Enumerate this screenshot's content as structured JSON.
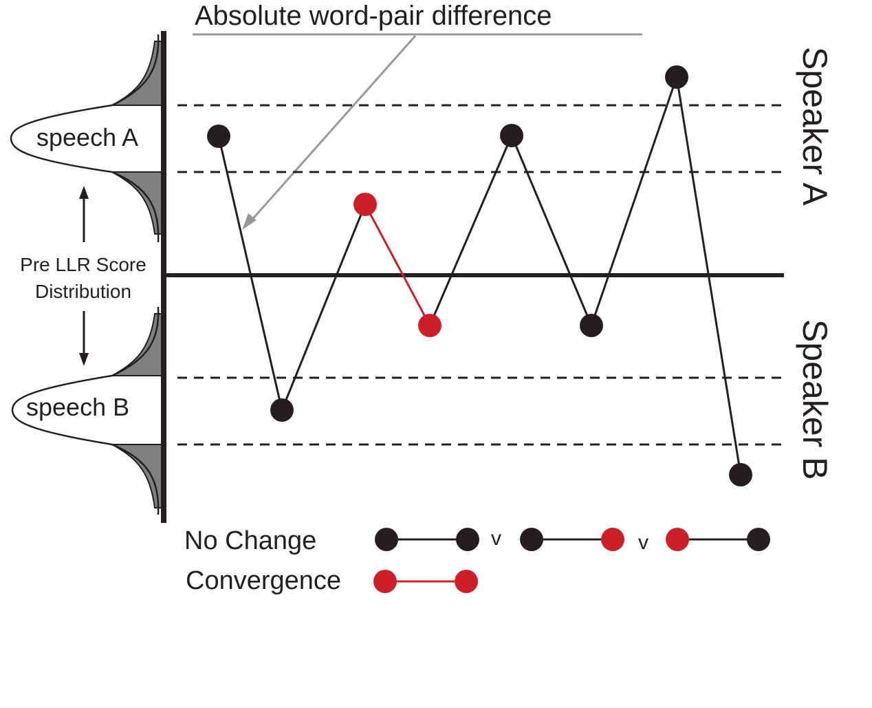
{
  "title": "Absolute word-pair difference",
  "left_axis": {
    "speech_a_label": "speech A",
    "speech_b_label": "speech B",
    "distribution_label_line1": "Pre LLR Score",
    "distribution_label_line2": "Distribution"
  },
  "side_labels": {
    "top": "Speaker A",
    "bottom": "Speaker B"
  },
  "legend": {
    "no_change_label": "No Change",
    "convergence_label": "Convergence",
    "separator_1": "v",
    "separator_2": "v"
  },
  "colors": {
    "black": "#231f20",
    "red": "#c9202a",
    "gray_fill": "#808080",
    "arrow_gray": "#999999"
  },
  "points": [
    {
      "index": 1,
      "color": "black"
    },
    {
      "index": 2,
      "color": "black"
    },
    {
      "index": 3,
      "color": "red"
    },
    {
      "index": 4,
      "color": "red"
    },
    {
      "index": 5,
      "color": "black"
    },
    {
      "index": 6,
      "color": "black"
    },
    {
      "index": 7,
      "color": "black"
    },
    {
      "index": 8,
      "color": "black"
    }
  ]
}
